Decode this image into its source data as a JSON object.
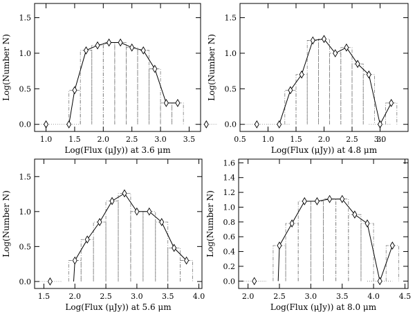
{
  "chart_data": [
    {
      "type": "line",
      "xlabel": "Log(Flux (μJy)) at 3.6 μm",
      "ylabel": "Log(Number N)",
      "xlim": [
        0.8,
        3.7
      ],
      "ylim": [
        -0.1,
        1.7
      ],
      "xticks": [
        "1.0",
        "1.5",
        "2.0",
        "2.5",
        "3.0",
        "3.5"
      ],
      "yticks": [
        "0.0",
        "0.5",
        "1.0",
        "1.5"
      ],
      "x": [
        1.0,
        1.4,
        1.5,
        1.7,
        1.9,
        2.1,
        2.3,
        2.5,
        2.7,
        2.9,
        3.1,
        3.3,
        3.8
      ],
      "y": [
        0.0,
        0.0,
        0.48,
        1.04,
        1.11,
        1.15,
        1.15,
        1.08,
        1.04,
        0.78,
        0.3,
        0.3,
        0.0
      ],
      "line_x": [
        1.4,
        1.5,
        1.7,
        1.9,
        2.1,
        2.3,
        2.5,
        2.7,
        2.9,
        3.1,
        3.3
      ],
      "line_y": [
        0.0,
        0.48,
        1.04,
        1.11,
        1.15,
        1.15,
        1.08,
        1.04,
        0.78,
        0.3,
        0.3
      ]
    },
    {
      "type": "line",
      "xlabel": "Log(Flux (μJy)) at 4.8 μm",
      "ylabel": "Log(Number N)",
      "xlim": [
        0.5,
        3.5
      ],
      "ylim": [
        -0.1,
        1.7
      ],
      "xticks": [
        "0.5",
        "1.0",
        "1.5",
        "2.0",
        "2.5",
        "3.0",
        "3."
      ],
      "yticks": [
        "0.0",
        "0.5",
        "1.0",
        "1.5"
      ],
      "x": [
        0.8,
        1.2,
        1.4,
        1.6,
        1.8,
        2.0,
        2.2,
        2.4,
        2.6,
        2.8,
        3.0,
        3.2
      ],
      "y": [
        0.0,
        0.0,
        0.48,
        0.7,
        1.18,
        1.2,
        1.0,
        1.08,
        0.85,
        0.7,
        0.0,
        0.3
      ],
      "line_x": [
        1.2,
        1.4,
        1.6,
        1.8,
        2.0,
        2.2,
        2.4,
        2.6,
        2.8,
        3.0,
        3.2
      ],
      "line_y": [
        0.0,
        0.48,
        0.7,
        1.18,
        1.2,
        1.0,
        1.08,
        0.85,
        0.7,
        0.0,
        0.3
      ]
    },
    {
      "type": "line",
      "xlabel": "Log(Flux (μJy)) at 5.6 μm",
      "ylabel": "Log(Number N)",
      "xlim": [
        1.35,
        4.05
      ],
      "ylim": [
        -0.1,
        1.75
      ],
      "xticks": [
        "1.5",
        "2.0",
        "2.5",
        "3.0",
        "3.5",
        "4.0"
      ],
      "yticks": [
        "0.0",
        "0.5",
        "1.0",
        "1.5"
      ],
      "x": [
        1.6,
        2.0,
        2.2,
        2.4,
        2.6,
        2.8,
        3.0,
        3.2,
        3.4,
        3.6,
        3.8
      ],
      "y": [
        0.0,
        0.3,
        0.6,
        0.85,
        1.15,
        1.26,
        1.0,
        1.0,
        0.85,
        0.48,
        0.3
      ],
      "line_x": [
        1.98,
        2.0,
        2.2,
        2.4,
        2.6,
        2.8,
        3.0,
        3.2,
        3.4,
        3.6,
        3.8
      ],
      "line_y": [
        0.0,
        0.3,
        0.6,
        0.85,
        1.15,
        1.26,
        1.0,
        1.0,
        0.85,
        0.48,
        0.3
      ]
    },
    {
      "type": "line",
      "xlabel": "Log(Flux (μJy)) at 8.0 μm",
      "ylabel": "Log(Number N)",
      "xlim": [
        1.85,
        4.55
      ],
      "ylim": [
        -0.1,
        1.65
      ],
      "xticks": [
        "2.0",
        "2.5",
        "3.0",
        "3.5",
        "4.0",
        "4.5"
      ],
      "yticks": [
        "0.0",
        "0.2",
        "0.4",
        "0.6",
        "0.8",
        "1.0",
        "1.2",
        "1.4",
        "1.6"
      ],
      "x": [
        2.1,
        2.5,
        2.7,
        2.9,
        3.1,
        3.3,
        3.5,
        3.7,
        3.9,
        4.1,
        4.3
      ],
      "y": [
        0.0,
        0.48,
        0.78,
        1.08,
        1.08,
        1.11,
        1.11,
        0.9,
        0.78,
        0.0,
        0.48
      ],
      "line_x": [
        2.48,
        2.5,
        2.7,
        2.9,
        3.1,
        3.3,
        3.5,
        3.7,
        3.9,
        4.1,
        4.3
      ],
      "line_y": [
        0.0,
        0.48,
        0.78,
        1.08,
        1.08,
        1.11,
        1.11,
        0.9,
        0.78,
        0.0,
        0.48
      ]
    }
  ]
}
